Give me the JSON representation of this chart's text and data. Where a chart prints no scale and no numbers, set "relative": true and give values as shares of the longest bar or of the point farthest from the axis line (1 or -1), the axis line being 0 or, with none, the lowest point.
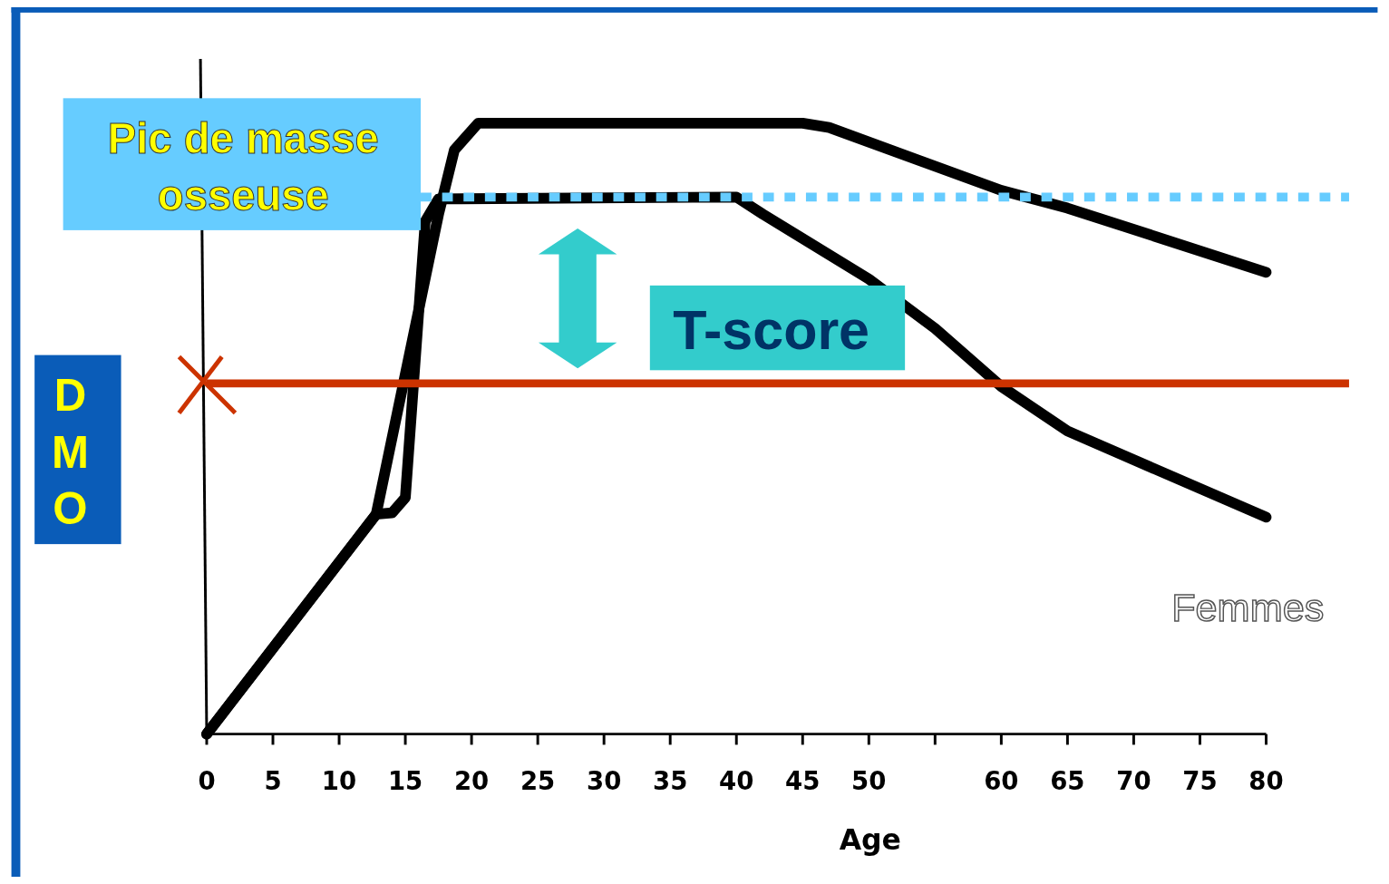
{
  "chart_data": {
    "type": "line",
    "relative": true,
    "xlabel": "Age",
    "ylabel": "DMO",
    "xlim": [
      0,
      80
    ],
    "xticks": [
      0,
      5,
      10,
      15,
      20,
      25,
      30,
      35,
      40,
      45,
      50,
      {
        "value": 55,
        "label": null
      },
      60,
      65,
      70,
      75,
      80
    ],
    "tick_labels": "x",
    "marker": "none",
    "line_style": "solid",
    "series": [
      {
        "color": "#000000",
        "x": [
          0,
          12.8,
          17.5,
          18.7,
          20.5,
          45,
          47,
          60,
          65,
          80
        ],
        "values": [
          0,
          0.36,
          0.85,
          0.956,
          1,
          1,
          0.993,
          0.89,
          0.861,
          0.756
        ]
      },
      {
        "color": "#000000",
        "x": [
          0,
          12.8,
          14,
          15,
          16.5,
          17.5,
          40,
          42,
          50,
          55,
          60,
          65,
          80
        ],
        "values": [
          0,
          0.36,
          0.362,
          0.387,
          0.839,
          0.876,
          0.879,
          0.851,
          0.745,
          0.664,
          0.569,
          0.496,
          0.355
        ]
      }
    ],
    "ref_lines": [
      {
        "axis": "y",
        "value": 0.879,
        "color": "#66ccff",
        "line_style": "dotted"
      },
      {
        "axis": "y",
        "value": 0.574,
        "color": "#cc3300",
        "line_style": "solid"
      }
    ],
    "annotations": [
      "Pic de masse osseuse",
      "T-score",
      "Femmes"
    ]
  }
}
